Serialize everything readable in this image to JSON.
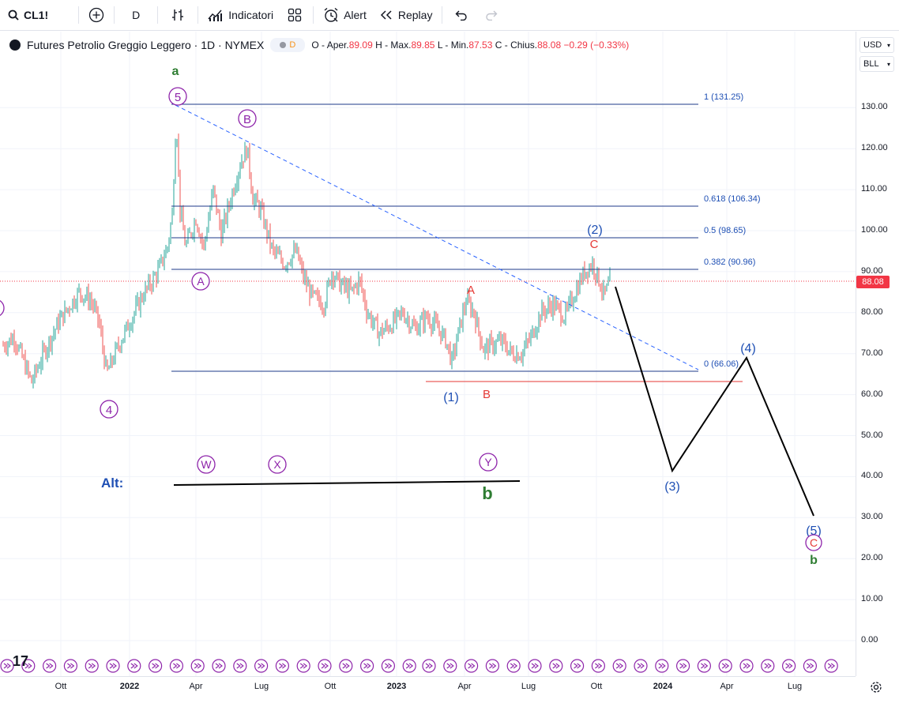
{
  "toolbar": {
    "symbol": "CL1!",
    "interval": "D",
    "indicators": "Indicatori",
    "alert": "Alert",
    "replay": "Replay"
  },
  "legend": {
    "title": "Futures Petrolio Greggio Leggero · 1D · NYMEX",
    "badge": "D",
    "open_label": "O - Aper.",
    "open": "89.09",
    "high_label": "H - Max.",
    "high": "89.85",
    "low_label": "L - Min.",
    "low": "87.53",
    "close_label": "C - Chius.",
    "close": "88.08",
    "change": "−0.29 (−0.33%)"
  },
  "price_axis": {
    "currency": "USD",
    "unit": "BLL",
    "last_price": "88.08",
    "ticks": [
      "130.00",
      "120.00",
      "110.00",
      "100.00",
      "90.00",
      "80.00",
      "70.00",
      "60.00",
      "50.00",
      "40.00",
      "30.00",
      "20.00",
      "10.00",
      "0.00"
    ]
  },
  "time_axis": {
    "labels": [
      {
        "text": "Ott",
        "bold": false
      },
      {
        "text": "2022",
        "bold": true
      },
      {
        "text": "Apr",
        "bold": false
      },
      {
        "text": "Lug",
        "bold": false
      },
      {
        "text": "Ott",
        "bold": false
      },
      {
        "text": "2023",
        "bold": true
      },
      {
        "text": "Apr",
        "bold": false
      },
      {
        "text": "Lug",
        "bold": false
      },
      {
        "text": "Ott",
        "bold": false
      },
      {
        "text": "2024",
        "bold": true
      },
      {
        "text": "Apr",
        "bold": false
      },
      {
        "text": "Lug",
        "bold": false
      }
    ]
  },
  "fib_levels": [
    {
      "label": "1 (131.25)",
      "price": 131.25
    },
    {
      "label": "0.618 (106.34)",
      "price": 106.34
    },
    {
      "label": "0.5 (98.65)",
      "price": 98.65
    },
    {
      "label": "0.382 (90.96)",
      "price": 90.96
    },
    {
      "label": "0 (66.06)",
      "price": 66.06
    }
  ],
  "wave_labels": {
    "a": "a",
    "five_circle": "5",
    "b_circle": "B",
    "a_circle": "A",
    "four_circle": "4",
    "two_paren": "(2)",
    "c_red": "C",
    "a_red": "A",
    "b_red": "B",
    "one_paren": "(1)",
    "four_paren": "(4)",
    "three_paren": "(3)",
    "five_paren": "(5)",
    "c_circle": "C",
    "b_green_small": "b",
    "w_circle": "W",
    "x_circle": "X",
    "y_circle": "Y",
    "alt": "Alt:",
    "b_green": "b"
  },
  "colors": {
    "fib_line": "#1e3a8a",
    "wave_blue": "#1e4fb4",
    "wave_purple": "#8e24aa",
    "wave_green": "#2e7d32",
    "red": "#e53935",
    "candle_up": "#26a69a",
    "candle_down": "#ef5350"
  }
}
